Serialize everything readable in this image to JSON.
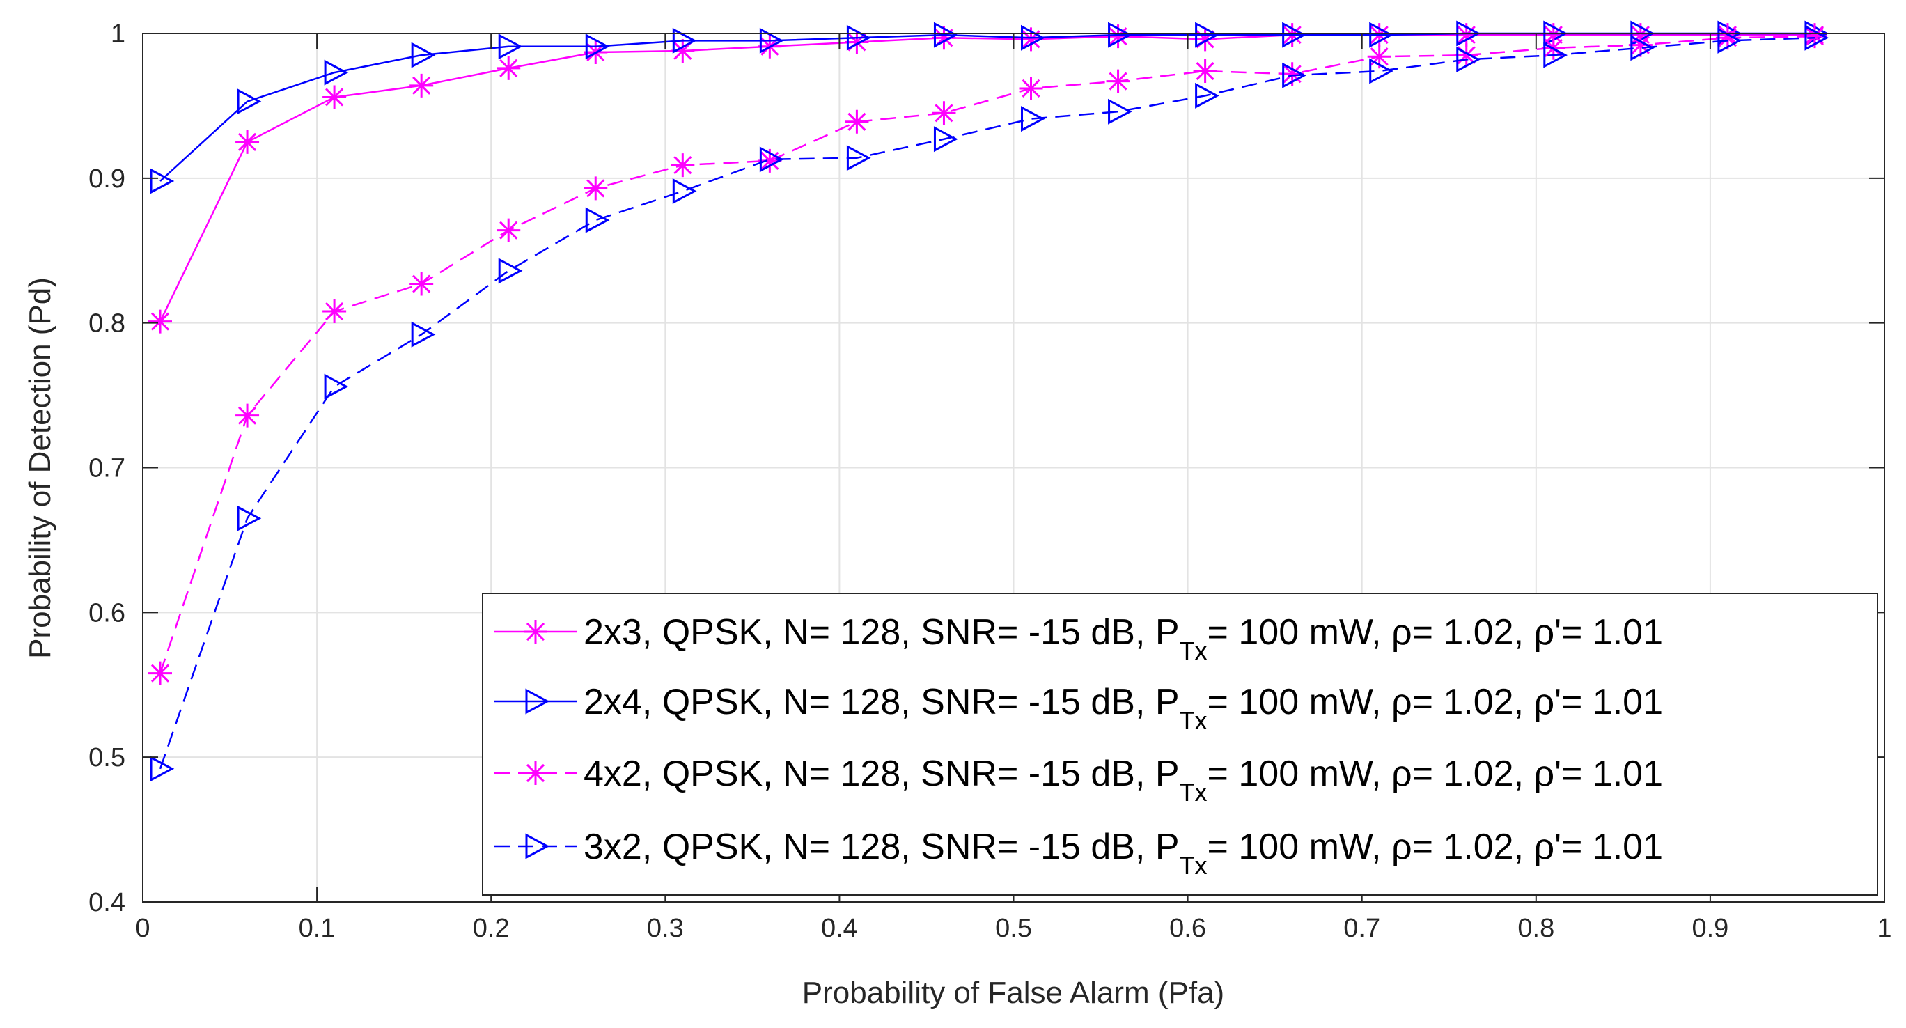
{
  "colors": {
    "magenta": "#ff00ff",
    "blue": "#0000ff",
    "grid": "#e3e3e3",
    "axis": "#262626"
  },
  "chart_data": {
    "type": "line",
    "title": "",
    "xlabel": "Probability of False Alarm (Pfa)",
    "ylabel": "Probability of Detection (Pd)",
    "xlim": [
      0,
      1
    ],
    "ylim": [
      0.4,
      1
    ],
    "grid": true,
    "legend_position": "bottom-right",
    "xticks": [
      0,
      0.1,
      0.2,
      0.3,
      0.4,
      0.5,
      0.6,
      0.7,
      0.8,
      0.9,
      1
    ],
    "xtick_labels": [
      "0",
      "0.1",
      "0.2",
      "0.3",
      "0.4",
      "0.5",
      "0.6",
      "0.7",
      "0.8",
      "0.9",
      "1"
    ],
    "yticks": [
      0.4,
      0.5,
      0.6,
      0.7,
      0.8,
      0.9,
      1
    ],
    "ytick_labels": [
      "0.4",
      "0.5",
      "0.6",
      "0.7",
      "0.8",
      "0.9",
      "1"
    ],
    "x": [
      0.01,
      0.06,
      0.11,
      0.16,
      0.21,
      0.26,
      0.31,
      0.36,
      0.41,
      0.46,
      0.51,
      0.56,
      0.61,
      0.66,
      0.71,
      0.76,
      0.81,
      0.86,
      0.91,
      0.96
    ],
    "series": [
      {
        "name": "2x3",
        "legend_pre": "2x3, QPSK, N= 128, SNR= -15 dB, P",
        "legend_sub": "Tx",
        "legend_post": "= 100 mW, ρ= 1.02, ρ'= 1.01",
        "color": "#ff00ff",
        "line": "solid",
        "marker": "asterisk",
        "values": [
          0.801,
          0.925,
          0.956,
          0.964,
          0.976,
          0.987,
          0.988,
          0.991,
          0.994,
          0.997,
          0.996,
          0.998,
          0.996,
          0.999,
          0.999,
          0.999,
          0.999,
          0.999,
          0.999,
          0.999
        ]
      },
      {
        "name": "2x4",
        "legend_pre": "2x4, QPSK, N= 128, SNR= -15 dB, P",
        "legend_sub": "Tx",
        "legend_post": "= 100 mW, ρ= 1.02, ρ'= 1.01",
        "color": "#0000ff",
        "line": "solid",
        "marker": "triangle-right",
        "values": [
          0.898,
          0.953,
          0.973,
          0.985,
          0.991,
          0.991,
          0.995,
          0.995,
          0.997,
          0.999,
          0.997,
          0.999,
          0.999,
          0.999,
          0.999,
          1.0,
          1.0,
          1.0,
          1.0,
          1.0
        ]
      },
      {
        "name": "4x2",
        "legend_pre": "4x2, QPSK, N= 128, SNR= -15 dB, P",
        "legend_sub": "Tx",
        "legend_post": "= 100 mW, ρ= 1.02, ρ'= 1.01",
        "color": "#ff00ff",
        "line": "dashed",
        "marker": "asterisk",
        "values": [
          0.558,
          0.736,
          0.808,
          0.827,
          0.864,
          0.893,
          0.909,
          0.912,
          0.939,
          0.945,
          0.962,
          0.967,
          0.974,
          0.972,
          0.984,
          0.985,
          0.99,
          0.992,
          0.997,
          0.998
        ]
      },
      {
        "name": "3x2",
        "legend_pre": "3x2, QPSK, N= 128, SNR= -15 dB, P",
        "legend_sub": "Tx",
        "legend_post": "= 100 mW, ρ= 1.02, ρ'= 1.01",
        "color": "#0000ff",
        "line": "dashed",
        "marker": "triangle-right",
        "values": [
          0.492,
          0.665,
          0.756,
          0.792,
          0.836,
          0.871,
          0.891,
          0.913,
          0.914,
          0.927,
          0.941,
          0.946,
          0.957,
          0.971,
          0.974,
          0.982,
          0.985,
          0.99,
          0.995,
          0.997
        ]
      }
    ]
  }
}
